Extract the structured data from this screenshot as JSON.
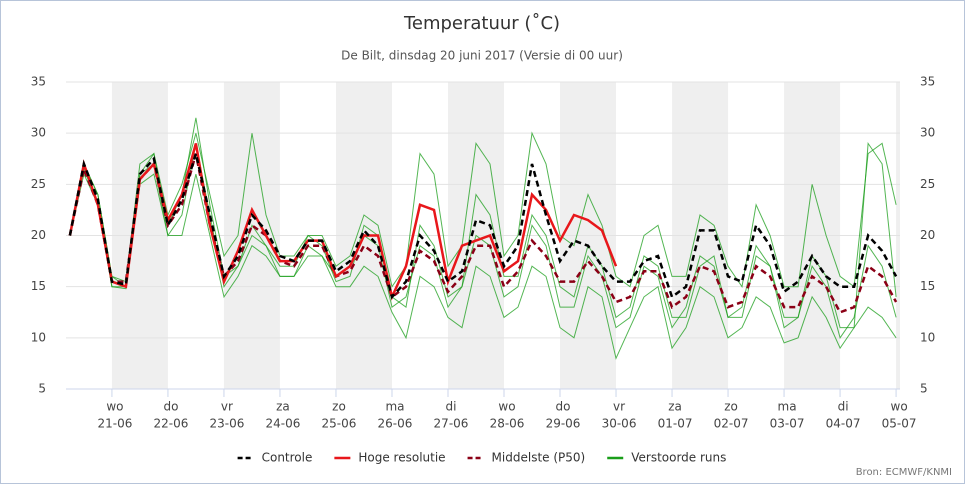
{
  "chart_data": {
    "type": "line",
    "title": "Temperatuur (˚C)",
    "subtitle": "De Bilt, dinsdag 20 juni 2017 (Versie di 00 uur)",
    "source": "Bron: ECMWF/KNMI",
    "x": [
      0.25,
      0.5,
      0.75,
      1.0,
      1.25,
      1.5,
      1.75,
      2.0,
      2.25,
      2.5,
      2.75,
      3.0,
      3.25,
      3.5,
      3.75,
      4.0,
      4.25,
      4.5,
      4.75,
      5.0,
      5.25,
      5.5,
      5.75,
      6.0,
      6.25,
      6.5,
      6.75,
      7.0,
      7.25,
      7.5,
      7.75,
      8.0,
      8.25,
      8.5,
      8.75,
      9.0,
      9.25,
      9.5,
      9.75,
      10.0,
      10.25,
      10.5,
      10.75,
      11.0,
      11.25,
      11.5,
      11.75,
      12.0,
      12.25,
      12.5,
      12.75,
      13.0,
      13.25,
      13.5,
      13.75,
      14.0,
      14.25,
      14.5,
      14.75,
      15.0
    ],
    "xlim": [
      0.18,
      15.07
    ],
    "xticks": [
      {
        "value": 1,
        "label": "wo",
        "date": "21-06"
      },
      {
        "value": 2,
        "label": "do",
        "date": "22-06"
      },
      {
        "value": 3,
        "label": "vr",
        "date": "23-06"
      },
      {
        "value": 4,
        "label": "za",
        "date": "24-06"
      },
      {
        "value": 5,
        "label": "zo",
        "date": "25-06"
      },
      {
        "value": 6,
        "label": "ma",
        "date": "26-06"
      },
      {
        "value": 7,
        "label": "di",
        "date": "27-06"
      },
      {
        "value": 8,
        "label": "wo",
        "date": "28-06"
      },
      {
        "value": 9,
        "label": "do",
        "date": "29-06"
      },
      {
        "value": 10,
        "label": "vr",
        "date": "30-06"
      },
      {
        "value": 11,
        "label": "za",
        "date": "01-07"
      },
      {
        "value": 12,
        "label": "zo",
        "date": "02-07"
      },
      {
        "value": 13,
        "label": "ma",
        "date": "03-07"
      },
      {
        "value": 14,
        "label": "di",
        "date": "04-07"
      },
      {
        "value": 15,
        "label": "wo",
        "date": "05-07"
      }
    ],
    "ylim": [
      5,
      35
    ],
    "yticks": [
      5,
      10,
      15,
      20,
      25,
      30,
      35
    ],
    "y2lim": [
      5,
      35
    ],
    "y2ticks": [
      5,
      10,
      15,
      20,
      25,
      30,
      35
    ],
    "grid": true,
    "series": [
      {
        "name": "Controle",
        "color": "#000000",
        "dash": true,
        "values": [
          20,
          27,
          23.5,
          15.5,
          15.2,
          26,
          27.5,
          21,
          23.5,
          28,
          22,
          16,
          18,
          22,
          20.5,
          18,
          17.5,
          19.5,
          19.5,
          16.5,
          17.5,
          20.5,
          19,
          14,
          15.5,
          20,
          18.5,
          15.5,
          16.5,
          21.5,
          21,
          17,
          19,
          27,
          22,
          17.5,
          19.5,
          19,
          17,
          15.5,
          15.5,
          17.5,
          18,
          14,
          15,
          20.5,
          20.5,
          16,
          15.5,
          21,
          19,
          14.5,
          15.5,
          18,
          16,
          15,
          15,
          20,
          18.5,
          16
        ]
      },
      {
        "name": "Hoge resolutie",
        "color": "#e8171b",
        "dash": false,
        "values": [
          20,
          27,
          23,
          15.5,
          15,
          25.5,
          27,
          21.5,
          24,
          29,
          21,
          15.5,
          18.5,
          22.5,
          20,
          17.5,
          17.5,
          19.5,
          19.5,
          16,
          17,
          20,
          20,
          14,
          17,
          23,
          22.5,
          15.5,
          19,
          19.5,
          20,
          16.5,
          17.5,
          24,
          22.5,
          19.5,
          22,
          21.5,
          20.5,
          17,
          null,
          null,
          null,
          null,
          null,
          null,
          null,
          null,
          null,
          null,
          null,
          null,
          null,
          null,
          null,
          null,
          null,
          null,
          null,
          null
        ]
      },
      {
        "name": "Middelste (P50)",
        "color": "#8b0016",
        "dash": true,
        "values": [
          20,
          26.5,
          23,
          15.5,
          15.5,
          25.5,
          27,
          21,
          23,
          28,
          21,
          16,
          17.5,
          21,
          20,
          17.5,
          17,
          19,
          19,
          16,
          16.5,
          19,
          18,
          14,
          15,
          18.5,
          17.5,
          14.5,
          16,
          19,
          19,
          15,
          16.5,
          19.5,
          18,
          15.5,
          15.5,
          17.5,
          16,
          13.5,
          14,
          16.5,
          16.5,
          13,
          14,
          17,
          16.5,
          13,
          13.5,
          17,
          16,
          13,
          13,
          16,
          15,
          12.5,
          13,
          17,
          16,
          13.5
        ]
      },
      {
        "name": "Verstoorde runs",
        "color": "#1a9e1a",
        "dash": false,
        "runs": [
          [
            20,
            27,
            24,
            16,
            15,
            26,
            28,
            21,
            24,
            31.5,
            23,
            16,
            17,
            20,
            19,
            17,
            17,
            20,
            19,
            15.5,
            16,
            21,
            20,
            14,
            13,
            21,
            19,
            14,
            15,
            24,
            22,
            16,
            16,
            22,
            20,
            15,
            14,
            19,
            17,
            12,
            13,
            18,
            17,
            12,
            12,
            17,
            18,
            12,
            13,
            19,
            17,
            11,
            12,
            18,
            16,
            11,
            11,
            29,
            27,
            14
          ],
          [
            20,
            26,
            23,
            15,
            14.8,
            25,
            26,
            20,
            20,
            26,
            20,
            14,
            16,
            19,
            18,
            16,
            16,
            18,
            18,
            15,
            15,
            17,
            16,
            12.5,
            10,
            16,
            15,
            12,
            11,
            17,
            16,
            12,
            13,
            17,
            16,
            11,
            10,
            15,
            14,
            8,
            11,
            14,
            15,
            9,
            11,
            15,
            14,
            10,
            11,
            14,
            13,
            9.5,
            10,
            14,
            12,
            9,
            11,
            13,
            12,
            10
          ],
          [
            20,
            27,
            24,
            16,
            15.5,
            27,
            28,
            22,
            25,
            30,
            24,
            18,
            20,
            30,
            22,
            18,
            18,
            20,
            20,
            17,
            18,
            22,
            21,
            15,
            17,
            28,
            26,
            17,
            19,
            29,
            27,
            18,
            20,
            30,
            27,
            20,
            19,
            24,
            21,
            16,
            15,
            20,
            21,
            16,
            16,
            22,
            21,
            17,
            15,
            23,
            20,
            15,
            15,
            25,
            20,
            16,
            15,
            28,
            29,
            23
          ],
          [
            20,
            26.5,
            23,
            15,
            15,
            26,
            27,
            20,
            22,
            29,
            22,
            15,
            17,
            21,
            19,
            16,
            16,
            19,
            18,
            16,
            17,
            20,
            19,
            13,
            14,
            19,
            18,
            13,
            15,
            20,
            19,
            14,
            15,
            21,
            19,
            13,
            13,
            18,
            16,
            11,
            12,
            17,
            16,
            11,
            13,
            18,
            17,
            12,
            12,
            18,
            17,
            12,
            12,
            17,
            15,
            10,
            12,
            19,
            17,
            12
          ]
        ]
      }
    ]
  }
}
